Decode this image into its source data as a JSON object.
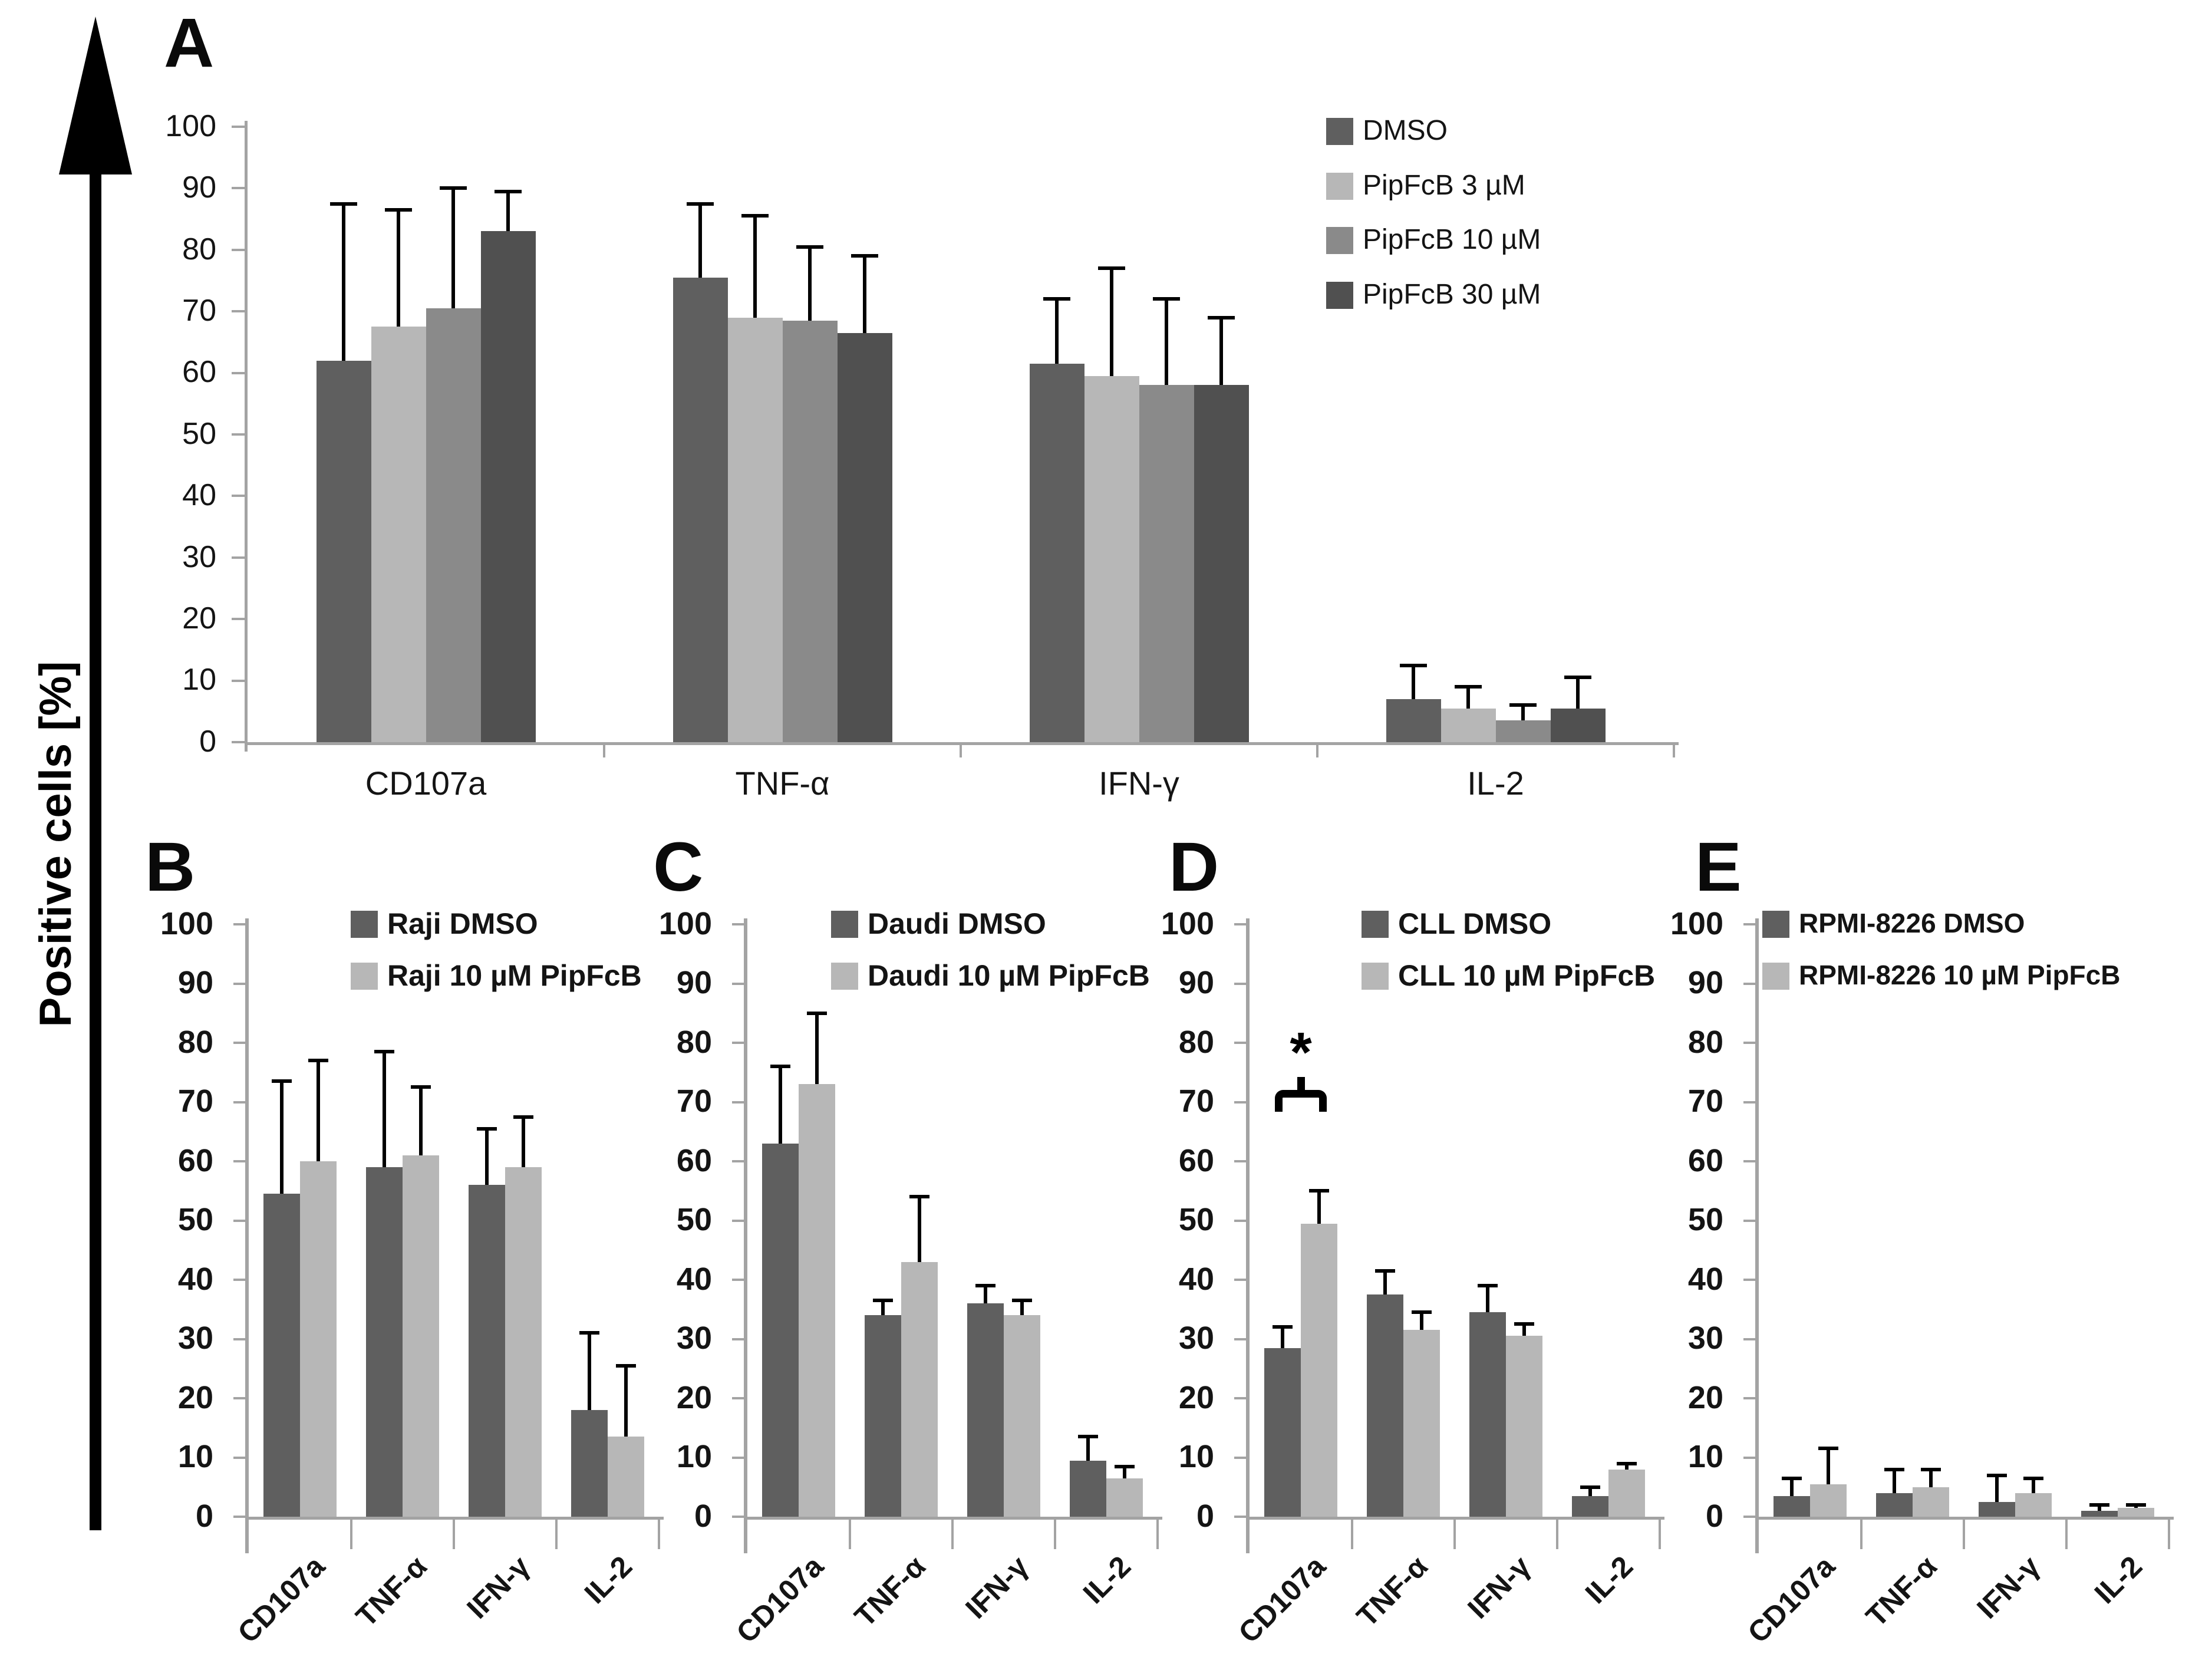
{
  "figure": {
    "y_axis_label": "Positive cells [%]",
    "arrow_icon": "up-arrow"
  },
  "y_axis": {
    "min": 0,
    "max": 100,
    "step": 10,
    "tick_labels": [
      "0",
      "10",
      "20",
      "30",
      "40",
      "50",
      "60",
      "70",
      "80",
      "90",
      "100"
    ]
  },
  "colors": {
    "dmso": "#5f5f5f",
    "pipfcb_3": "#b7b7b7",
    "pipfcb_10": "#8a8a8a",
    "pipfcb_30": "#505050",
    "axis_gray": "#a3a3a3",
    "error_bar": "#000000"
  },
  "chart_data": [
    {
      "panel": "A",
      "type": "bar",
      "categories": [
        "CD107a",
        "TNF-α",
        "IFN-γ",
        "IL-2"
      ],
      "ylim": [
        0,
        100
      ],
      "x_tick_rotation": 0,
      "legend_position": "top-right-inside",
      "series": [
        {
          "name": "DMSO",
          "color": "#5f5f5f",
          "values": [
            62,
            75.5,
            61.5,
            7
          ],
          "errors_up": [
            25.5,
            12,
            10.5,
            5.5
          ]
        },
        {
          "name": "PipFcB 3 µM",
          "color": "#b7b7b7",
          "values": [
            67.5,
            69,
            59.5,
            5.5
          ],
          "errors_up": [
            19,
            16.5,
            17.5,
            3.5
          ]
        },
        {
          "name": "PipFcB 10 µM",
          "color": "#8a8a8a",
          "values": [
            70.5,
            68.5,
            58,
            3.5
          ],
          "errors_up": [
            19.5,
            12,
            14,
            2.5
          ]
        },
        {
          "name": "PipFcB 30 µM",
          "color": "#505050",
          "values": [
            83,
            66.5,
            58,
            5.5
          ],
          "errors_up": [
            6.5,
            12.5,
            11,
            5
          ]
        }
      ]
    },
    {
      "panel": "B",
      "type": "bar",
      "categories": [
        "CD107a",
        "TNF-α",
        "IFN-γ",
        "IL-2"
      ],
      "ylim": [
        0,
        100
      ],
      "x_tick_rotation": 45,
      "legend_position": "top-inside",
      "series": [
        {
          "name": "Raji DMSO",
          "color": "#5f5f5f",
          "values": [
            54.5,
            59,
            56,
            18
          ],
          "errors_up": [
            19,
            19.5,
            9.5,
            13
          ]
        },
        {
          "name": "Raji 10 µM  PipFcB",
          "color": "#b7b7b7",
          "values": [
            60,
            61,
            59,
            13.5
          ],
          "errors_up": [
            17,
            11.5,
            8.5,
            12
          ]
        }
      ]
    },
    {
      "panel": "C",
      "type": "bar",
      "categories": [
        "CD107a",
        "TNF-α",
        "IFN-γ",
        "IL-2"
      ],
      "ylim": [
        0,
        100
      ],
      "x_tick_rotation": 45,
      "legend_position": "top-inside",
      "series": [
        {
          "name": "Daudi DMSO",
          "color": "#5f5f5f",
          "values": [
            63,
            34,
            36,
            9.5
          ],
          "errors_up": [
            13,
            2.5,
            3,
            4
          ]
        },
        {
          "name": "Daudi 10 µM PipFcB",
          "color": "#b7b7b7",
          "values": [
            73,
            43,
            34,
            6.5
          ],
          "errors_up": [
            12,
            11,
            2.5,
            2
          ]
        }
      ]
    },
    {
      "panel": "D",
      "type": "bar",
      "categories": [
        "CD107a",
        "TNF-α",
        "IFN-γ",
        "IL-2"
      ],
      "ylim": [
        0,
        100
      ],
      "x_tick_rotation": 45,
      "legend_position": "top-inside",
      "significance": {
        "category": "CD107a",
        "symbol": "*",
        "bracket_y": 72
      },
      "series": [
        {
          "name": "CLL DMSO",
          "color": "#5f5f5f",
          "values": [
            28.5,
            37.5,
            34.5,
            3.5
          ],
          "errors_up": [
            3.5,
            4,
            4.5,
            1.5
          ]
        },
        {
          "name": "CLL 10 µM  PipFcB",
          "color": "#b7b7b7",
          "values": [
            49.5,
            31.5,
            30.5,
            8
          ],
          "errors_up": [
            5.5,
            3,
            2,
            1
          ]
        }
      ]
    },
    {
      "panel": "E",
      "type": "bar",
      "categories": [
        "CD107a",
        "TNF-α",
        "IFN-γ",
        "IL-2"
      ],
      "ylim": [
        0,
        100
      ],
      "x_tick_rotation": 45,
      "legend_position": "top-inside",
      "series": [
        {
          "name": "RPMI-8226 DMSO",
          "color": "#5f5f5f",
          "values": [
            3.5,
            4,
            2.5,
            1
          ],
          "errors_up": [
            3,
            4,
            4.5,
            1
          ]
        },
        {
          "name": "RPMI-8226 10 µM PipFcB",
          "color": "#b7b7b7",
          "values": [
            5.5,
            5,
            4,
            1.5
          ],
          "errors_up": [
            6,
            3,
            2.5,
            0.5
          ]
        }
      ]
    }
  ]
}
